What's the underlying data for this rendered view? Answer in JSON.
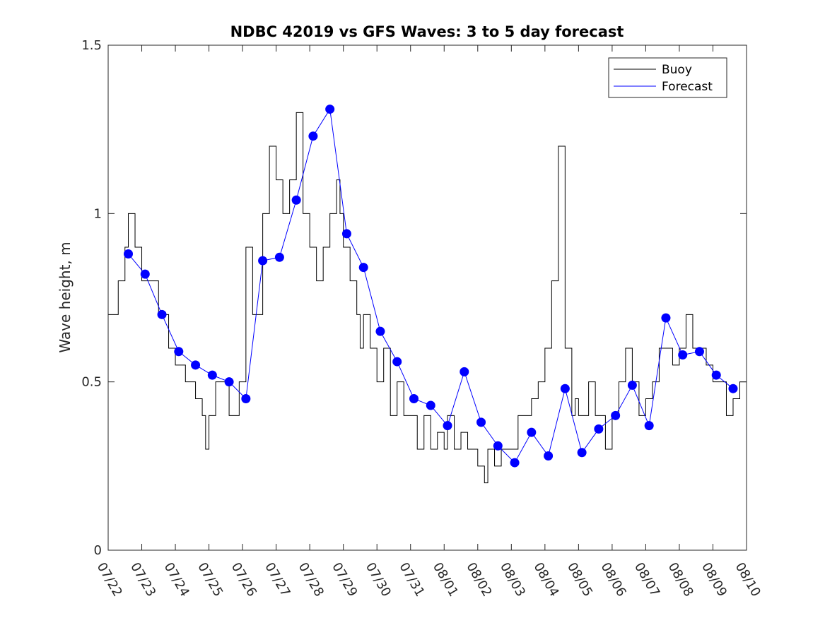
{
  "chart_data": {
    "type": "line",
    "title": "NDBC 42019 vs GFS Waves: 3 to 5 day forecast",
    "xlabel": "",
    "ylabel": "Wave height, m",
    "ylim": [
      0,
      1.5
    ],
    "yticks": [
      "0",
      "0.5",
      "1",
      "1.5"
    ],
    "xlim": [
      0,
      19
    ],
    "xticks": [
      "07/22",
      "07/23",
      "07/24",
      "07/25",
      "07/26",
      "07/27",
      "07/28",
      "07/29",
      "07/30",
      "07/31",
      "08/01",
      "08/02",
      "08/03",
      "08/04",
      "08/05",
      "08/06",
      "08/07",
      "08/08",
      "08/09",
      "08/10"
    ],
    "grid": false,
    "legend_position": "top-right",
    "colors": {
      "buoy": "#000000",
      "forecast": "#0000ff",
      "axis": "#262626"
    },
    "series": [
      {
        "name": "Buoy",
        "style": "stepped line",
        "x": [
          0,
          0.3,
          0.5,
          0.6,
          0.8,
          1.0,
          1.5,
          1.8,
          2.0,
          2.3,
          2.6,
          2.8,
          2.9,
          3.0,
          3.2,
          3.6,
          3.9,
          4.1,
          4.3,
          4.6,
          4.8,
          5.0,
          5.2,
          5.4,
          5.6,
          5.8,
          6.0,
          6.2,
          6.4,
          6.6,
          6.8,
          6.9,
          7.0,
          7.2,
          7.4,
          7.5,
          7.6,
          7.8,
          8.0,
          8.2,
          8.4,
          8.6,
          8.8,
          9.0,
          9.2,
          9.4,
          9.6,
          9.8,
          10.0,
          10.1,
          10.3,
          10.5,
          10.7,
          11.0,
          11.2,
          11.3,
          11.5,
          11.7,
          12.0,
          12.2,
          12.4,
          12.6,
          12.8,
          13.0,
          13.2,
          13.4,
          13.6,
          13.8,
          13.9,
          14.0,
          14.1,
          14.3,
          14.5,
          14.8,
          15.0,
          15.2,
          15.4,
          15.6,
          15.8,
          16.0,
          16.2,
          16.4,
          16.6,
          16.8,
          17.0,
          17.2,
          17.4,
          17.6,
          17.8,
          18.0,
          18.2,
          18.4,
          18.6,
          18.8,
          19.0
        ],
        "y": [
          0.7,
          0.8,
          0.9,
          1.0,
          0.9,
          0.8,
          0.7,
          0.6,
          0.55,
          0.5,
          0.45,
          0.4,
          0.3,
          0.4,
          0.5,
          0.4,
          0.5,
          0.9,
          0.7,
          1.0,
          1.2,
          1.1,
          1.0,
          1.1,
          1.3,
          1.0,
          0.9,
          0.8,
          0.9,
          1.0,
          1.1,
          1.0,
          0.9,
          0.8,
          0.7,
          0.6,
          0.7,
          0.6,
          0.5,
          0.6,
          0.4,
          0.5,
          0.4,
          0.4,
          0.3,
          0.4,
          0.3,
          0.35,
          0.3,
          0.4,
          0.3,
          0.35,
          0.3,
          0.25,
          0.2,
          0.3,
          0.25,
          0.3,
          0.3,
          0.4,
          0.4,
          0.45,
          0.5,
          0.6,
          0.8,
          1.2,
          0.6,
          0.4,
          0.45,
          0.4,
          0.4,
          0.5,
          0.4,
          0.3,
          0.4,
          0.5,
          0.6,
          0.5,
          0.4,
          0.45,
          0.5,
          0.6,
          0.6,
          0.55,
          0.6,
          0.7,
          0.6,
          0.6,
          0.55,
          0.5,
          0.5,
          0.4,
          0.45,
          0.5,
          0.5
        ]
      },
      {
        "name": "Forecast",
        "style": "thin lines (multiple forecast runs) with dot markers",
        "x": [
          0.6,
          1.1,
          1.6,
          2.1,
          2.6,
          3.1,
          3.6,
          4.1,
          4.6,
          5.1,
          5.6,
          6.1,
          6.6,
          7.1,
          7.6,
          8.1,
          8.6,
          9.1,
          9.6,
          10.1,
          10.6,
          11.1,
          11.6,
          12.1,
          12.6,
          13.1,
          13.6,
          14.1,
          14.6,
          15.1,
          15.6,
          16.1,
          16.6,
          17.1,
          17.6,
          18.1,
          18.6
        ],
        "y": [
          0.88,
          0.82,
          0.7,
          0.59,
          0.55,
          0.52,
          0.5,
          0.45,
          0.86,
          0.87,
          1.04,
          1.23,
          1.31,
          0.94,
          0.84,
          0.65,
          0.56,
          0.45,
          0.43,
          0.37,
          0.53,
          0.38,
          0.31,
          0.26,
          0.35,
          0.28,
          0.48,
          0.29,
          0.36,
          0.4,
          0.49,
          0.37,
          0.69,
          0.58,
          0.59,
          0.52,
          0.48
        ]
      }
    ]
  }
}
